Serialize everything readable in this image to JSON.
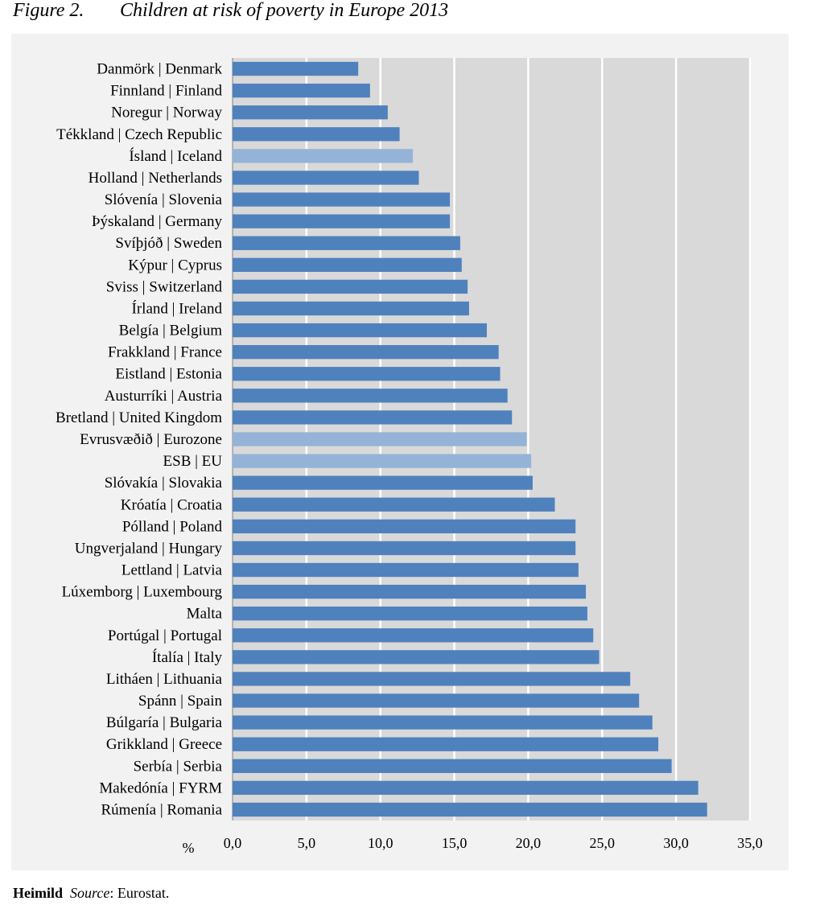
{
  "figure": {
    "number": "Figure 2.",
    "title": "Children at risk of poverty in Europe 2013"
  },
  "source": {
    "label": "Heimild",
    "source_word": "Source",
    "text": ": Eurostat."
  },
  "colors": {
    "bar": "#4f81bd",
    "bar_highlight": "#95b3d7",
    "plot_bg": "#d9d9d9",
    "panel_bg": "#f2f2f2",
    "grid": "#ffffff"
  },
  "chart_data": {
    "type": "bar",
    "orientation": "horizontal",
    "title": "Children at risk of poverty in Europe 2013",
    "xlabel": "%",
    "ylabel": "",
    "xlim": [
      0,
      35
    ],
    "xticks": [
      0,
      5,
      10,
      15,
      20,
      25,
      30,
      35
    ],
    "xtick_labels": [
      "0,0",
      "5,0",
      "10,0",
      "15,0",
      "20,0",
      "25,0",
      "30,0",
      "35,0"
    ],
    "grid": true,
    "categories": [
      "Danmörk | Denmark",
      "Finnland | Finland",
      "Noregur | Norway",
      "Tékkland | Czech Republic",
      "Ísland | Iceland",
      "Holland | Netherlands",
      "Slóvenía | Slovenia",
      "Þýskaland | Germany",
      "Svíþjóð | Sweden",
      "Kýpur | Cyprus",
      "Sviss | Switzerland",
      "Írland | Ireland",
      "Belgía | Belgium",
      "Frakkland | France",
      "Eistland | Estonia",
      "Austurríki | Austria",
      "Bretland | United Kingdom",
      "Evrusvæðið | Eurozone",
      "ESB | EU",
      "Slóvakía | Slovakia",
      "Króatía | Croatia",
      "Pólland | Poland",
      "Ungverjaland | Hungary",
      "Lettland | Latvia",
      "Lúxemborg | Luxembourg",
      "Malta",
      "Portúgal | Portugal",
      "Ítalía | Italy",
      "Litháen | Lithuania",
      "Spánn | Spain",
      "Búlgaría | Bulgaria",
      "Grikkland | Greece",
      "Serbía | Serbia",
      "Makedónía | FYRM",
      "Rúmenía | Romania"
    ],
    "values": [
      8.5,
      9.3,
      10.5,
      11.3,
      12.2,
      12.6,
      14.7,
      14.7,
      15.4,
      15.5,
      15.9,
      16.0,
      17.2,
      18.0,
      18.1,
      18.6,
      18.9,
      19.9,
      20.2,
      20.3,
      21.8,
      23.2,
      23.2,
      23.4,
      23.9,
      24.0,
      24.4,
      24.8,
      26.9,
      27.5,
      28.4,
      28.8,
      29.7,
      31.5,
      32.1
    ],
    "highlighted": [
      "Ísland | Iceland",
      "Evrusvæðið | Eurozone",
      "ESB | EU"
    ]
  }
}
